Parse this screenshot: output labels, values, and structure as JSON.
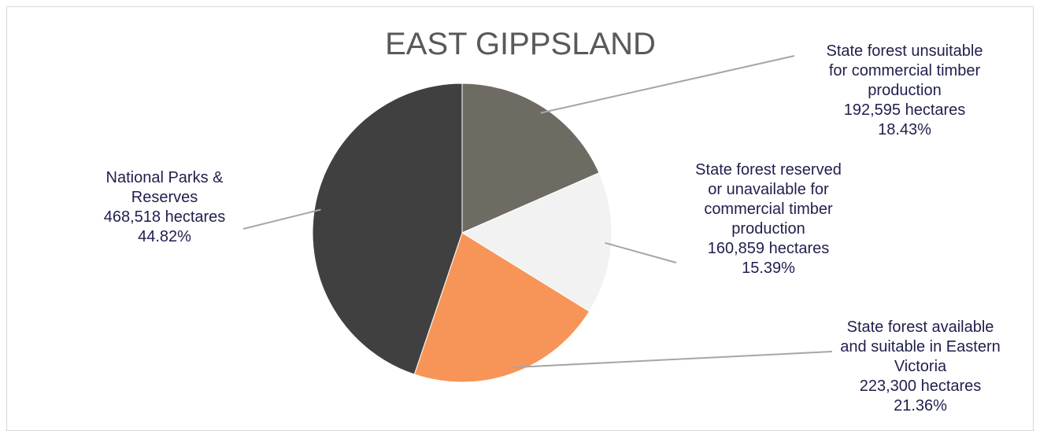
{
  "chart_data": {
    "type": "pie",
    "title": "EAST GIPPSLAND",
    "slices": [
      {
        "label_lines": [
          "State forest unsuitable",
          "for commercial timber",
          "production"
        ],
        "value_text": "192,595 hectares",
        "percent_text": "18.43%",
        "value": 192595,
        "percent": 18.43,
        "color": "#6e6b63"
      },
      {
        "label_lines": [
          "State forest reserved",
          "or unavailable  for",
          "commercial timber",
          "production"
        ],
        "value_text": "160,859 hectares",
        "percent_text": "15.39%",
        "value": 160859,
        "percent": 15.39,
        "color": "#f2f2f2"
      },
      {
        "label_lines": [
          "State forest available",
          "and suitable in Eastern",
          "Victoria"
        ],
        "value_text": "223,300 hectares",
        "percent_text": "21.36%",
        "value": 223300,
        "percent": 21.36,
        "color": "#f79558"
      },
      {
        "label_lines": [
          "National Parks &",
          "Reserves"
        ],
        "value_text": "468,518 hectares",
        "percent_text": "44.82%",
        "value": 468518,
        "percent": 44.82,
        "color": "#404040"
      }
    ],
    "legend": "none"
  }
}
